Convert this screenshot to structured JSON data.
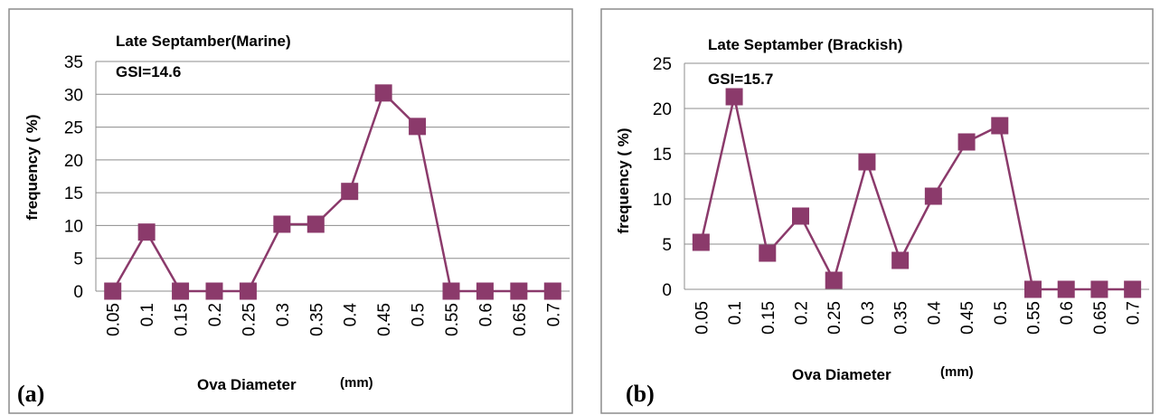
{
  "colors": {
    "series": "#8b3a6b",
    "grid": "#8c8c8c",
    "frame": "#8c8c8c"
  },
  "chart_data": [
    {
      "type": "line",
      "panel_label": "(a)",
      "title": "Late Septamber(Marine)",
      "annotation": "GSI=14.6",
      "xlabel": "Ova Diameter",
      "xlabel_unit": "(mm)",
      "ylabel": "frequency ( %)",
      "categories": [
        "0.05",
        "0.1",
        "0.15",
        "0.2",
        "0.25",
        "0.3",
        "0.35",
        "0.4",
        "0.45",
        "0.5",
        "0.55",
        "0.6",
        "0.65",
        "0.7"
      ],
      "values": [
        0,
        9,
        0,
        0,
        0,
        10.2,
        10.2,
        15.2,
        30.2,
        25.1,
        0,
        0,
        0,
        0
      ],
      "ylim": [
        0,
        35
      ],
      "yticks": [
        0,
        5,
        10,
        15,
        20,
        25,
        30,
        35
      ],
      "grid": true,
      "marker": "square"
    },
    {
      "type": "line",
      "panel_label": "(b)",
      "title": "Late Septamber (Brackish)",
      "annotation": "GSI=15.7",
      "xlabel": "Ova Diameter",
      "xlabel_unit": "(mm)",
      "ylabel": "frequency ( %)",
      "categories": [
        "0.05",
        "0.1",
        "0.15",
        "0.2",
        "0.25",
        "0.3",
        "0.35",
        "0.4",
        "0.45",
        "0.5",
        "0.55",
        "0.6",
        "0.65",
        "0.7"
      ],
      "values": [
        5.2,
        21.3,
        4,
        8.1,
        1,
        14.1,
        3.2,
        10.3,
        16.3,
        18.1,
        0,
        0,
        0,
        0
      ],
      "ylim": [
        0,
        25
      ],
      "yticks": [
        0,
        5,
        10,
        15,
        20,
        25
      ],
      "grid": true,
      "marker": "square"
    }
  ]
}
